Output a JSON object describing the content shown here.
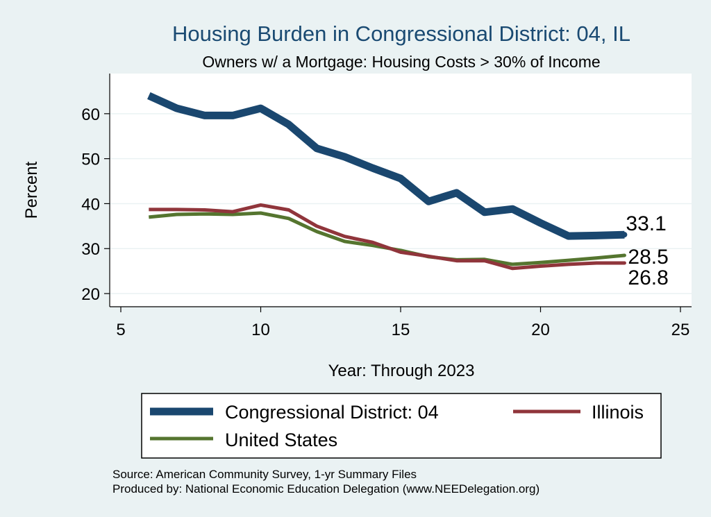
{
  "chart_data": {
    "type": "line",
    "title": "Housing Burden in Congressional District:  04, IL",
    "subtitle": "Owners w/ a Mortgage: Housing Costs > 30% of Income",
    "xlabel": "Year: Through 2023",
    "ylabel": "Percent",
    "xlim": [
      5,
      25
    ],
    "ylim": [
      18,
      68
    ],
    "xticks": [
      5,
      10,
      15,
      20,
      25
    ],
    "yticks": [
      20,
      30,
      40,
      50,
      60
    ],
    "x": [
      6,
      7,
      8,
      9,
      10,
      11,
      12,
      13,
      14,
      15,
      16,
      17,
      18,
      19,
      20,
      21,
      22,
      23
    ],
    "series": [
      {
        "name": "Congressional District:  04",
        "color": "#1a476f",
        "values": [
          64.0,
          61.2,
          59.6,
          59.6,
          61.2,
          57.6,
          52.3,
          50.4,
          47.9,
          45.6,
          40.5,
          42.4,
          38.1,
          38.8,
          35.7,
          32.8,
          32.9,
          33.1
        ],
        "end_label": "33.1"
      },
      {
        "name": "Illinois",
        "color": "#90353b",
        "values": [
          38.7,
          38.7,
          38.6,
          38.2,
          39.7,
          38.6,
          35.0,
          32.7,
          31.4,
          29.2,
          28.3,
          27.3,
          27.3,
          25.6,
          26.1,
          26.5,
          26.8,
          26.8
        ],
        "end_label": "26.8"
      },
      {
        "name": "United States",
        "color": "#55752f",
        "values": [
          37.0,
          37.6,
          37.7,
          37.6,
          37.9,
          36.7,
          33.8,
          31.6,
          30.7,
          29.6,
          28.2,
          27.5,
          27.6,
          26.5,
          26.9,
          27.4,
          27.9,
          28.5
        ],
        "end_label": "28.5"
      }
    ],
    "legend": {
      "position": "bottom",
      "entries": [
        "Congressional District:  04",
        "Illinois",
        "United States"
      ]
    },
    "grid": true
  },
  "source_line": "Source: American Community Survey, 1-yr Summary Files",
  "produced_line": "Produced by: National Economic Education Delegation (www.NEEDelegation.org)"
}
